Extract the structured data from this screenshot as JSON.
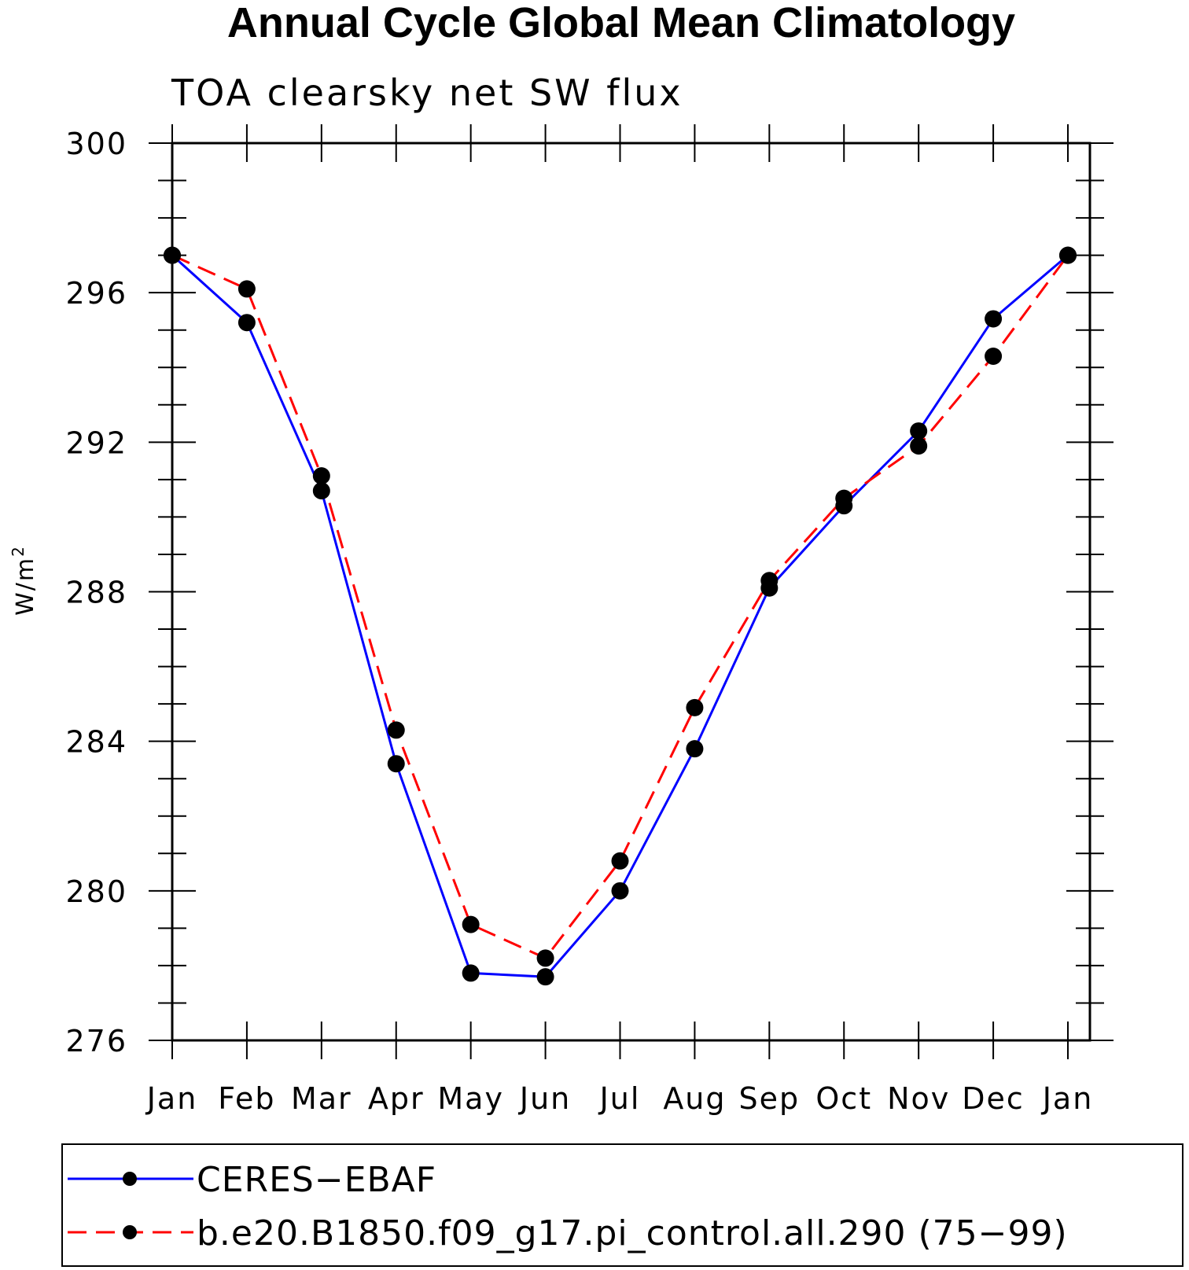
{
  "chart_data": {
    "type": "line",
    "title": "Annual Cycle Global Mean Climatology",
    "subtitle": "TOA clearsky net SW flux",
    "xlabel": "",
    "ylabel": "W/m",
    "ylabel_superscript": "2",
    "categories": [
      "Jan",
      "Feb",
      "Mar",
      "Apr",
      "May",
      "Jun",
      "Jul",
      "Aug",
      "Sep",
      "Oct",
      "Nov",
      "Dec",
      "Jan"
    ],
    "ylim": [
      276,
      300
    ],
    "yticks": [
      276,
      280,
      284,
      288,
      292,
      296,
      300
    ],
    "yminor_step": 1,
    "grid": false,
    "legend_position": "bottom",
    "series": [
      {
        "name": "CERES−EBAF",
        "color": "#0000ff",
        "style": "solid",
        "values": [
          297.0,
          295.2,
          290.7,
          283.4,
          277.8,
          277.7,
          280.0,
          283.8,
          288.1,
          290.3,
          292.3,
          295.3,
          297.0
        ]
      },
      {
        "name": "b.e20.B1850.f09_g17.pi_control.all.290 (75−99)",
        "color": "#ff0000",
        "style": "dashed",
        "values": [
          297.0,
          296.1,
          291.1,
          284.3,
          279.1,
          278.2,
          280.8,
          284.9,
          288.3,
          290.5,
          291.9,
          294.3,
          297.0
        ]
      }
    ]
  }
}
